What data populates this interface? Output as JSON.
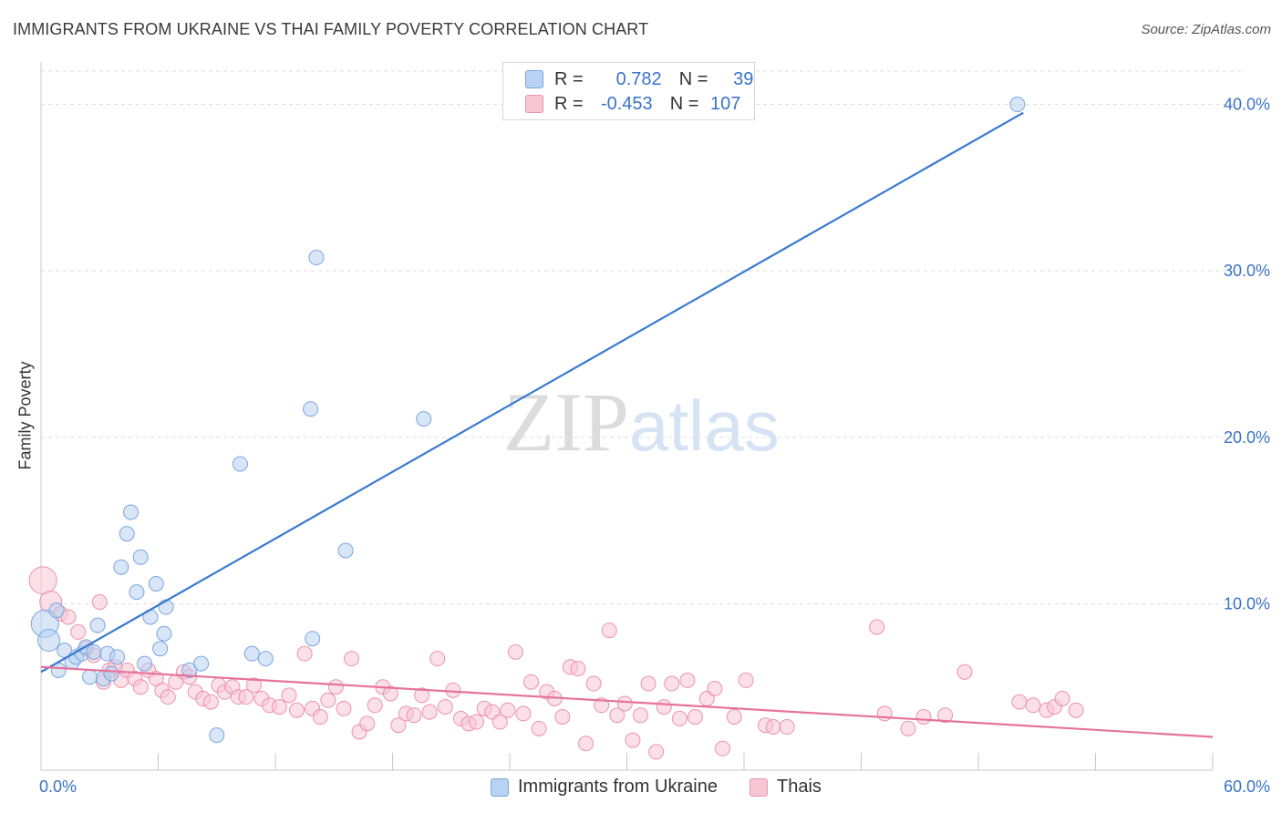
{
  "title": "IMMIGRANTS FROM UKRAINE VS THAI FAMILY POVERTY CORRELATION CHART",
  "source": "Source: ZipAtlas.com",
  "watermark": {
    "part1": "ZIP",
    "part2": "atlas"
  },
  "legend": {
    "rows": [
      {
        "r_label": "R =",
        "r_value": "0.782",
        "n_label": "N =",
        "n_value": "39"
      },
      {
        "r_label": "R =",
        "r_value": "-0.453",
        "n_label": "N =",
        "n_value": "107"
      }
    ]
  },
  "bottom_legend": [
    "Immigrants from Ukraine",
    "Thais"
  ],
  "colors": {
    "blue_fill": "#b8d2f3",
    "blue_stroke": "#7aa6dd",
    "blue_line": "#3b7ad0",
    "pink_fill": "#f7c6d5",
    "pink_stroke": "#ec92ad",
    "pink_line": "#e5739b",
    "tick_label": "#3a72c9",
    "grid": "#dddddd"
  },
  "chart_data": {
    "type": "scatter",
    "title": "IMMIGRANTS FROM UKRAINE VS THAI FAMILY POVERTY CORRELATION CHART",
    "xlabel": "",
    "ylabel": "Family Poverty",
    "xlim": [
      0,
      60
    ],
    "ylim": [
      0,
      42
    ],
    "x_tick_labels": [
      "0.0%",
      "60.0%"
    ],
    "y_ticks": [
      10,
      20,
      30,
      40
    ],
    "y_tick_labels": [
      "10.0%",
      "20.0%",
      "30.0%",
      "40.0%"
    ],
    "grid": true,
    "series": [
      {
        "name": "Immigrants from Ukraine",
        "r": 0.782,
        "n": 39,
        "trend": {
          "x": [
            0,
            50.3
          ],
          "y": [
            5.9,
            39.5
          ]
        },
        "points": [
          [
            0.2,
            8.8
          ],
          [
            0.4,
            7.8
          ],
          [
            0.8,
            9.6
          ],
          [
            0.9,
            6.0
          ],
          [
            1.2,
            7.2
          ],
          [
            1.6,
            6.5
          ],
          [
            1.8,
            6.8
          ],
          [
            2.1,
            7.0
          ],
          [
            2.3,
            7.4
          ],
          [
            2.5,
            5.6
          ],
          [
            2.7,
            7.1
          ],
          [
            2.9,
            8.7
          ],
          [
            3.2,
            5.5
          ],
          [
            3.4,
            7.0
          ],
          [
            3.6,
            5.8
          ],
          [
            3.9,
            6.8
          ],
          [
            4.1,
            12.2
          ],
          [
            4.4,
            14.2
          ],
          [
            4.6,
            15.5
          ],
          [
            4.9,
            10.7
          ],
          [
            5.1,
            12.8
          ],
          [
            5.3,
            6.4
          ],
          [
            5.6,
            9.2
          ],
          [
            5.9,
            11.2
          ],
          [
            6.1,
            7.3
          ],
          [
            6.3,
            8.2
          ],
          [
            6.4,
            9.8
          ],
          [
            7.6,
            6.0
          ],
          [
            8.2,
            6.4
          ],
          [
            9.0,
            2.1
          ],
          [
            10.2,
            18.4
          ],
          [
            10.8,
            7.0
          ],
          [
            11.5,
            6.7
          ],
          [
            13.8,
            21.7
          ],
          [
            13.9,
            7.9
          ],
          [
            14.1,
            30.8
          ],
          [
            15.6,
            13.2
          ],
          [
            19.6,
            21.1
          ],
          [
            50.0,
            40.0
          ]
        ]
      },
      {
        "name": "Thais",
        "r": -0.453,
        "n": 107,
        "trend": {
          "x": [
            0,
            60
          ],
          "y": [
            6.2,
            2.0
          ]
        },
        "points": [
          [
            0.1,
            11.4
          ],
          [
            0.5,
            10.1
          ],
          [
            1.0,
            9.4
          ],
          [
            1.4,
            9.2
          ],
          [
            1.9,
            8.3
          ],
          [
            2.3,
            7.3
          ],
          [
            2.7,
            6.9
          ],
          [
            3.0,
            10.1
          ],
          [
            3.2,
            5.3
          ],
          [
            3.5,
            6.0
          ],
          [
            3.8,
            6.2
          ],
          [
            4.1,
            5.4
          ],
          [
            4.4,
            6.0
          ],
          [
            4.8,
            5.5
          ],
          [
            5.1,
            5.0
          ],
          [
            5.5,
            6.0
          ],
          [
            5.9,
            5.5
          ],
          [
            6.2,
            4.8
          ],
          [
            6.5,
            4.4
          ],
          [
            6.9,
            5.3
          ],
          [
            7.3,
            5.9
          ],
          [
            7.6,
            5.6
          ],
          [
            7.9,
            4.7
          ],
          [
            8.3,
            4.3
          ],
          [
            8.7,
            4.1
          ],
          [
            9.1,
            5.1
          ],
          [
            9.4,
            4.7
          ],
          [
            9.8,
            5.0
          ],
          [
            10.1,
            4.4
          ],
          [
            10.5,
            4.4
          ],
          [
            10.9,
            5.1
          ],
          [
            11.3,
            4.3
          ],
          [
            11.7,
            3.9
          ],
          [
            12.2,
            3.8
          ],
          [
            12.7,
            4.5
          ],
          [
            13.1,
            3.6
          ],
          [
            13.5,
            7.0
          ],
          [
            13.9,
            3.7
          ],
          [
            14.3,
            3.2
          ],
          [
            14.7,
            4.2
          ],
          [
            15.1,
            5.0
          ],
          [
            15.5,
            3.7
          ],
          [
            15.9,
            6.7
          ],
          [
            16.3,
            2.3
          ],
          [
            16.7,
            2.8
          ],
          [
            17.1,
            3.9
          ],
          [
            17.5,
            5.0
          ],
          [
            17.9,
            4.6
          ],
          [
            18.3,
            2.7
          ],
          [
            18.7,
            3.4
          ],
          [
            19.1,
            3.3
          ],
          [
            19.5,
            4.5
          ],
          [
            19.9,
            3.5
          ],
          [
            20.3,
            6.7
          ],
          [
            20.7,
            3.8
          ],
          [
            21.1,
            4.8
          ],
          [
            21.5,
            3.1
          ],
          [
            21.9,
            2.8
          ],
          [
            22.3,
            2.9
          ],
          [
            22.7,
            3.7
          ],
          [
            23.1,
            3.5
          ],
          [
            23.5,
            2.9
          ],
          [
            23.9,
            3.6
          ],
          [
            24.3,
            7.1
          ],
          [
            24.7,
            3.4
          ],
          [
            25.1,
            5.3
          ],
          [
            25.5,
            2.5
          ],
          [
            25.9,
            4.7
          ],
          [
            26.3,
            4.3
          ],
          [
            26.7,
            3.2
          ],
          [
            27.1,
            6.2
          ],
          [
            27.5,
            6.1
          ],
          [
            27.9,
            1.6
          ],
          [
            28.3,
            5.2
          ],
          [
            28.7,
            3.9
          ],
          [
            29.1,
            8.4
          ],
          [
            29.5,
            3.3
          ],
          [
            29.9,
            4.0
          ],
          [
            30.3,
            1.8
          ],
          [
            30.7,
            3.3
          ],
          [
            31.1,
            5.2
          ],
          [
            31.5,
            1.1
          ],
          [
            31.9,
            3.8
          ],
          [
            32.3,
            5.2
          ],
          [
            32.7,
            3.1
          ],
          [
            33.1,
            5.4
          ],
          [
            33.5,
            3.2
          ],
          [
            34.1,
            4.3
          ],
          [
            34.5,
            4.9
          ],
          [
            34.9,
            1.3
          ],
          [
            35.5,
            3.2
          ],
          [
            36.1,
            5.4
          ],
          [
            37.1,
            2.7
          ],
          [
            37.5,
            2.6
          ],
          [
            38.2,
            2.6
          ],
          [
            42.8,
            8.6
          ],
          [
            43.2,
            3.4
          ],
          [
            44.4,
            2.5
          ],
          [
            45.2,
            3.2
          ],
          [
            46.3,
            3.3
          ],
          [
            47.3,
            5.9
          ],
          [
            50.1,
            4.1
          ],
          [
            50.8,
            3.9
          ],
          [
            51.5,
            3.6
          ],
          [
            51.9,
            3.8
          ],
          [
            52.3,
            4.3
          ],
          [
            53.0,
            3.6
          ]
        ]
      }
    ]
  }
}
